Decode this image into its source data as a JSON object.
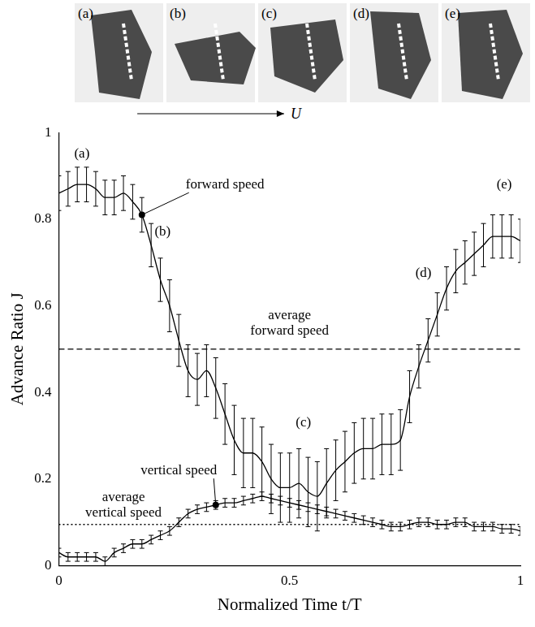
{
  "image_strip": {
    "labels": [
      "(a)",
      "(b)",
      "(c)",
      "(d)",
      "(e)"
    ],
    "direction_label": "U"
  },
  "chart_data": {
    "type": "line",
    "x_label": "Normalized Time t/T",
    "y_label": "Advance Ratio J",
    "x": [
      0,
      0.02,
      0.04,
      0.06,
      0.08,
      0.1,
      0.12,
      0.14,
      0.16,
      0.18,
      0.2,
      0.22,
      0.24,
      0.26,
      0.28,
      0.3,
      0.32,
      0.34,
      0.36,
      0.38,
      0.4,
      0.42,
      0.44,
      0.46,
      0.48,
      0.5,
      0.52,
      0.54,
      0.56,
      0.58,
      0.6,
      0.62,
      0.64,
      0.66,
      0.68,
      0.7,
      0.72,
      0.74,
      0.76,
      0.78,
      0.8,
      0.82,
      0.84,
      0.86,
      0.88,
      0.9,
      0.92,
      0.94,
      0.96,
      0.98,
      1
    ],
    "xlim": [
      0,
      1
    ],
    "xticks": [
      0,
      0.5,
      1
    ],
    "ylim": [
      0,
      1
    ],
    "yticks": [
      0,
      0.2,
      0.4,
      0.6,
      0.8,
      1
    ],
    "grid": false,
    "series": [
      {
        "name": "forward speed",
        "color": "#000000",
        "line_style": "solid",
        "values": [
          0.86,
          0.87,
          0.88,
          0.88,
          0.87,
          0.85,
          0.85,
          0.86,
          0.84,
          0.81,
          0.74,
          0.66,
          0.6,
          0.52,
          0.45,
          0.43,
          0.45,
          0.41,
          0.35,
          0.29,
          0.26,
          0.26,
          0.24,
          0.2,
          0.18,
          0.18,
          0.19,
          0.17,
          0.16,
          0.19,
          0.22,
          0.24,
          0.26,
          0.27,
          0.27,
          0.28,
          0.28,
          0.29,
          0.39,
          0.46,
          0.52,
          0.58,
          0.64,
          0.68,
          0.7,
          0.72,
          0.74,
          0.76,
          0.76,
          0.76,
          0.75
        ],
        "errors": [
          0.04,
          0.04,
          0.04,
          0.04,
          0.04,
          0.04,
          0.04,
          0.04,
          0.04,
          0.04,
          0.05,
          0.05,
          0.06,
          0.06,
          0.06,
          0.06,
          0.06,
          0.07,
          0.07,
          0.08,
          0.08,
          0.08,
          0.08,
          0.08,
          0.08,
          0.08,
          0.08,
          0.08,
          0.08,
          0.08,
          0.07,
          0.07,
          0.07,
          0.07,
          0.07,
          0.07,
          0.07,
          0.07,
          0.06,
          0.05,
          0.05,
          0.05,
          0.05,
          0.05,
          0.05,
          0.05,
          0.05,
          0.05,
          0.05,
          0.05,
          0.05
        ],
        "callout": {
          "x": 0.36,
          "y": 0.88,
          "point_x": 0.18,
          "point_y": 0.81
        }
      },
      {
        "name": "vertical speed",
        "color": "#000000",
        "line_style": "solid",
        "values": [
          0.03,
          0.02,
          0.02,
          0.02,
          0.02,
          0.01,
          0.03,
          0.04,
          0.05,
          0.05,
          0.06,
          0.07,
          0.08,
          0.1,
          0.12,
          0.13,
          0.135,
          0.14,
          0.145,
          0.145,
          0.15,
          0.155,
          0.16,
          0.155,
          0.15,
          0.145,
          0.14,
          0.135,
          0.13,
          0.125,
          0.12,
          0.115,
          0.11,
          0.105,
          0.1,
          0.095,
          0.09,
          0.09,
          0.095,
          0.1,
          0.1,
          0.095,
          0.095,
          0.1,
          0.1,
          0.09,
          0.09,
          0.09,
          0.085,
          0.085,
          0.08
        ],
        "errors": [
          0.01,
          0.01,
          0.01,
          0.01,
          0.01,
          0.01,
          0.01,
          0.01,
          0.01,
          0.01,
          0.01,
          0.01,
          0.01,
          0.01,
          0.01,
          0.01,
          0.01,
          0.01,
          0.01,
          0.01,
          0.01,
          0.01,
          0.01,
          0.01,
          0.01,
          0.01,
          0.01,
          0.01,
          0.01,
          0.01,
          0.01,
          0.01,
          0.01,
          0.01,
          0.01,
          0.01,
          0.01,
          0.01,
          0.01,
          0.01,
          0.01,
          0.01,
          0.01,
          0.01,
          0.01,
          0.01,
          0.01,
          0.01,
          0.01,
          0.01,
          0.01
        ],
        "callout": {
          "x": 0.26,
          "y": 0.22,
          "point_x": 0.34,
          "point_y": 0.14
        }
      }
    ],
    "reference_lines": [
      {
        "label": "average forward speed",
        "y": 0.5,
        "line_style": "dashed",
        "label_x": 0.5,
        "label_y": 0.56
      },
      {
        "label": "average vertical speed",
        "y": 0.095,
        "line_style": "dotted",
        "label_x": 0.14,
        "label_y": 0.14
      }
    ],
    "annotations": [
      {
        "text": "(a)",
        "x": 0.05,
        "y": 0.95
      },
      {
        "text": "(b)",
        "x": 0.225,
        "y": 0.77
      },
      {
        "text": "(c)",
        "x": 0.53,
        "y": 0.33
      },
      {
        "text": "(d)",
        "x": 0.79,
        "y": 0.675
      },
      {
        "text": "(e)",
        "x": 0.965,
        "y": 0.88
      }
    ]
  }
}
